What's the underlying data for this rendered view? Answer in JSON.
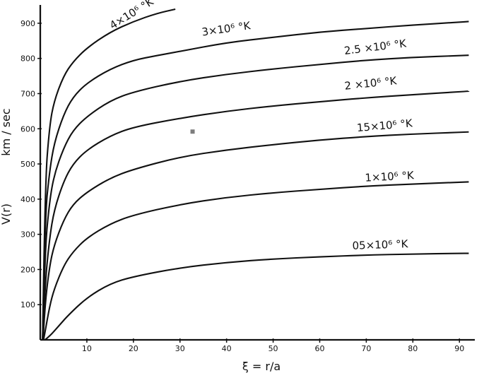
{
  "chart_data": {
    "type": "line",
    "title": "",
    "xlabel": "ξ = r/a",
    "ylabel": "V(r)",
    "yunit": "km / sec",
    "xlim": [
      0,
      93
    ],
    "ylim": [
      0,
      950
    ],
    "grid": false,
    "legend": "none",
    "x_ticks": [
      10,
      20,
      30,
      40,
      50,
      60,
      70,
      80,
      90
    ],
    "y_ticks": [
      100,
      200,
      300,
      400,
      500,
      600,
      700,
      800,
      900
    ],
    "series": [
      {
        "name": "05×10⁶ °K",
        "x": [
          1,
          2,
          4,
          6,
          10,
          15,
          20,
          30,
          40,
          50,
          60,
          70,
          80,
          90,
          92
        ],
        "y": [
          0,
          10,
          40,
          70,
          120,
          160,
          180,
          205,
          220,
          230,
          236,
          241,
          244,
          246,
          246
        ]
      },
      {
        "name": "1×10⁶ °K",
        "x": [
          0.7,
          1,
          2,
          3,
          5,
          7,
          10,
          15,
          20,
          30,
          40,
          50,
          60,
          70,
          80,
          90,
          92
        ],
        "y": [
          0,
          20,
          95,
          145,
          210,
          250,
          290,
          330,
          355,
          385,
          405,
          418,
          428,
          437,
          443,
          448,
          449
        ]
      },
      {
        "name": "15×10⁶ °K",
        "x": [
          0.6,
          1,
          2,
          3,
          5,
          7,
          10,
          15,
          20,
          30,
          40,
          50,
          60,
          70,
          80,
          90,
          92
        ],
        "y": [
          0,
          100,
          210,
          270,
          340,
          385,
          420,
          460,
          485,
          520,
          540,
          555,
          568,
          578,
          585,
          590,
          591
        ]
      },
      {
        "name": "2 ×10⁶ °K",
        "x": [
          0.55,
          1,
          2,
          3,
          5,
          7,
          10,
          15,
          20,
          30,
          40,
          50,
          60,
          70,
          80,
          90,
          92
        ],
        "y": [
          0,
          155,
          290,
          370,
          450,
          500,
          540,
          580,
          605,
          630,
          650,
          665,
          677,
          688,
          697,
          705,
          707
        ]
      },
      {
        "name": "2.5 ×10⁶ °K",
        "x": [
          0.5,
          1,
          2,
          3,
          5,
          7,
          10,
          15,
          20,
          30,
          40,
          50,
          60,
          70,
          80,
          90,
          92
        ],
        "y": [
          0,
          255,
          395,
          470,
          545,
          595,
          635,
          680,
          705,
          735,
          755,
          770,
          783,
          795,
          803,
          808,
          809
        ]
      },
      {
        "name": "3×10⁶ °K",
        "x": [
          0.5,
          1,
          2,
          3,
          5,
          7,
          10,
          15,
          20,
          25,
          30,
          40,
          50,
          60,
          70,
          80,
          90,
          92
        ],
        "y": [
          0,
          350,
          480,
          560,
          640,
          690,
          730,
          770,
          795,
          808,
          820,
          845,
          860,
          875,
          885,
          895,
          903,
          905
        ]
      },
      {
        "name": "4×10⁶ °K",
        "x": [
          0.5,
          1,
          2,
          3,
          5,
          7,
          10,
          15,
          20,
          25,
          29
        ],
        "y": [
          0,
          440,
          610,
          680,
          750,
          790,
          830,
          875,
          905,
          928,
          940
        ]
      }
    ],
    "curve_labels": [
      {
        "series": 0,
        "text": "05×10⁶ °K",
        "x": 73,
        "y": 246,
        "angle": -2
      },
      {
        "series": 1,
        "text": "1×10⁶ °K",
        "x": 75,
        "y": 440,
        "angle": -3
      },
      {
        "series": 2,
        "text": "15×10⁶ °K",
        "x": 74,
        "y": 585,
        "angle": -5
      },
      {
        "series": 3,
        "text": "2 ×10⁶ °K",
        "x": 71,
        "y": 705,
        "angle": -6
      },
      {
        "series": 4,
        "text": "2.5 ×10⁶ °K",
        "x": 72,
        "y": 808,
        "angle": -7
      },
      {
        "series": 5,
        "text": "3×10⁶ °K",
        "x": 40,
        "y": 860,
        "angle": -8
      },
      {
        "series": 6,
        "text": "4×10⁶ °K",
        "x": 20,
        "y": 905,
        "angle": -32
      }
    ],
    "artifact_point": {
      "x": 32.7,
      "y": 592
    }
  }
}
